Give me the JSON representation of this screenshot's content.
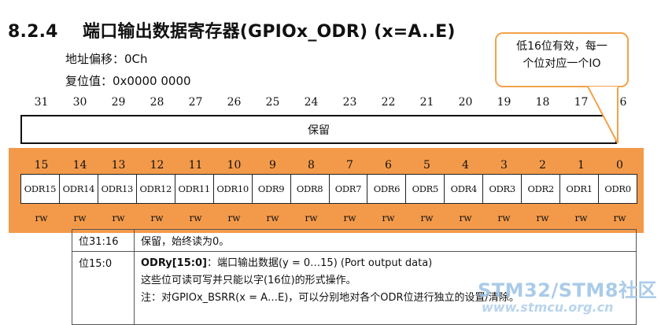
{
  "title": {
    "number": "8.2.4",
    "text": "端口输出数据寄存器(GPIOx_ODR) (x=A..E)"
  },
  "meta": {
    "offset": "地址偏移：0Ch",
    "reset": "复位值：0x0000 0000"
  },
  "upper_bits": [
    "31",
    "30",
    "29",
    "28",
    "27",
    "26",
    "25",
    "24",
    "23",
    "22",
    "21",
    "20",
    "19",
    "18",
    "17",
    "16"
  ],
  "reserved_label": "保留",
  "lower_bits": [
    "15",
    "14",
    "13",
    "12",
    "11",
    "10",
    "9",
    "8",
    "7",
    "6",
    "5",
    "4",
    "3",
    "2",
    "1",
    "0"
  ],
  "fields": [
    "ODR15",
    "ODR14",
    "ODR13",
    "ODR12",
    "ODR11",
    "ODR10",
    "ODR9",
    "ODR8",
    "ODR7",
    "ODR6",
    "ODR5",
    "ODR4",
    "ODR3",
    "ODR2",
    "ODR1",
    "ODR0"
  ],
  "access": [
    "rw",
    "rw",
    "rw",
    "rw",
    "rw",
    "rw",
    "rw",
    "rw",
    "rw",
    "rw",
    "rw",
    "rw",
    "rw",
    "rw",
    "rw",
    "rw"
  ],
  "descriptions": [
    {
      "bits": "位31:16",
      "text": "保留，始终读为0。"
    },
    {
      "bits": "位15:0",
      "name": "ODRy[15:0]",
      "text": "：端口输出数据(y = 0…15) (Port output data)",
      "line2": "这些位可读可写并只能以字(16位)的形式操作。",
      "note": "注：对GPIOx_BSRR(x = A…E)，可以分别地对各个ODR位进行独立的设置/清除。"
    }
  ],
  "callout": {
    "line1": "低16位有效，每一",
    "line2": "个位对应一个IO"
  },
  "watermark": {
    "line1": "STM32/STM8社区",
    "line2": "www.stmcu.org.cn"
  },
  "colors": {
    "band": "#f39a4a",
    "callout_border": "#f3a24a",
    "watermark": "#9cc3e6"
  }
}
